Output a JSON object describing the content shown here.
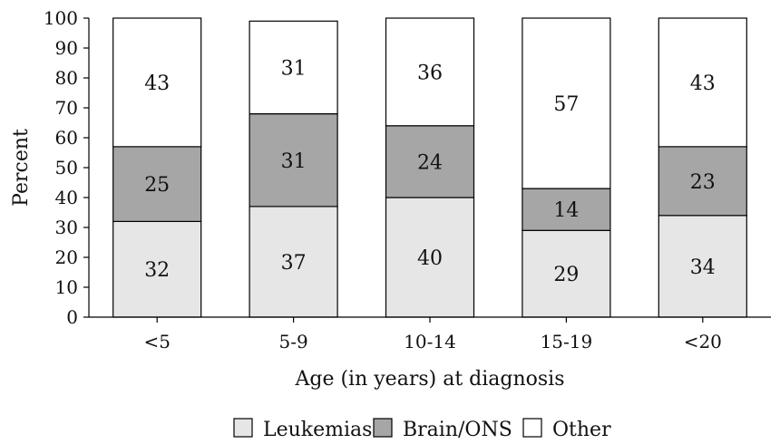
{
  "chart_data": {
    "type": "bar",
    "stacked": true,
    "categories": [
      "<5",
      "5-9",
      "10-14",
      "15-19",
      "<20"
    ],
    "series": [
      {
        "name": "Leukemias",
        "values": [
          32,
          37,
          40,
          29,
          34
        ],
        "color": "#e6e6e6"
      },
      {
        "name": "Brain/ONS",
        "values": [
          25,
          31,
          24,
          14,
          23
        ],
        "color": "#a6a6a6"
      },
      {
        "name": "Other",
        "values": [
          43,
          31,
          36,
          57,
          43
        ],
        "color": "#ffffff"
      }
    ],
    "title": "",
    "xlabel": "Age (in years) at diagnosis",
    "ylabel": "Percent",
    "ylim": [
      0,
      100
    ],
    "yticks": [
      0,
      10,
      20,
      30,
      40,
      50,
      60,
      70,
      80,
      90,
      100
    ],
    "grid": false,
    "legend_position": "bottom"
  }
}
